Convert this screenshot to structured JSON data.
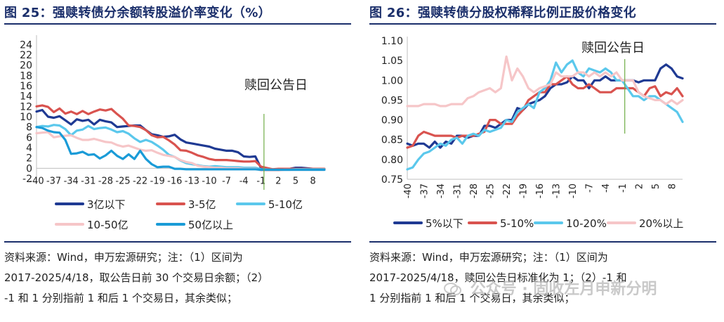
{
  "charts": [
    {
      "id": "left",
      "figure_title": "图 25：强赎转债分余额转股溢价率变化（%）",
      "annotation": "赎回公告日",
      "source_lines": [
        "资料来源：Wind，申万宏源研究；注：（1）区间为",
        "2017-2025/4/18，取公告日前 30 个交易日余额；（2）",
        "-1 和 1 分别指前 1 和后 1 个交易日，其余类似；"
      ]
    },
    {
      "id": "right",
      "figure_title": "图 26：强赎转债分股权稀释比例正股价格变化",
      "annotation": "赎回公告日",
      "source_lines": [
        "资料来源：Wind，申万宏源研究；注：（1）区间为",
        "2017-2025/4/18，赎回公告日标准化为 1；（2）-1 和",
        "1 分别指前 1 和后 1 个交易日，其余类似；"
      ]
    }
  ],
  "watermark": "公众号 · 固收左月申新分明",
  "colors": {
    "navy": "#1f3a93",
    "red": "#d9534f",
    "light_blue": "#5bc8ec",
    "pink": "#f6c6c8",
    "mid_blue": "#1a9bd7",
    "green_marker": "#70ad47",
    "rule": "#1b2f6b"
  },
  "chart_data": [
    {
      "type": "line",
      "title": "",
      "xlabel": "",
      "ylabel": "",
      "x_tick_labels": [
        "-40",
        "-37",
        "-34",
        "-31",
        "-28",
        "-25",
        "-22",
        "-19",
        "-16",
        "-13",
        "-10",
        "-7",
        "-4",
        "-1",
        "2",
        "5",
        "8"
      ],
      "x": [
        -40,
        -39,
        -38,
        -37,
        -36,
        -35,
        -34,
        -33,
        -32,
        -31,
        -30,
        -29,
        -28,
        -27,
        -26,
        -25,
        -24,
        -23,
        -22,
        -21,
        -20,
        -19,
        -18,
        -17,
        -16,
        -15,
        -14,
        -13,
        -12,
        -11,
        -10,
        -9,
        -8,
        -7,
        -6,
        -5,
        -4,
        -3,
        -2,
        -1,
        1,
        2,
        3,
        4,
        5,
        6,
        7,
        8,
        9,
        10
      ],
      "xlim": [
        -40,
        10
      ],
      "ylim": [
        -2,
        25
      ],
      "y_ticks": [
        -2,
        0,
        2,
        4,
        6,
        8,
        10,
        12,
        14,
        16,
        18,
        20,
        22,
        24
      ],
      "y_tick_labels": [
        "-2",
        "0",
        "2",
        "4",
        "6",
        "8",
        "10",
        "12",
        "14",
        "16",
        "18",
        "20",
        "22",
        "24"
      ],
      "event_x": -0.5,
      "event_label": "赎回公告日",
      "legend_position": "bottom",
      "series": [
        {
          "name": "3亿以下",
          "color": "#1f3a93",
          "values": [
            11,
            11.3,
            10,
            9.8,
            10.1,
            9.3,
            8.5,
            9.5,
            9.2,
            9.4,
            8.5,
            9.4,
            9.1,
            8.9,
            8.0,
            8.1,
            8.2,
            8.3,
            8.3,
            7.4,
            6.6,
            6.4,
            6.1,
            6.2,
            6.5,
            5.6,
            5.0,
            4.8,
            4.6,
            4.4,
            4.2,
            3.8,
            3.6,
            3.4,
            3.4,
            3.1,
            2.3,
            2.2,
            2.3,
            0,
            -0.3,
            -0.2,
            -0.2,
            -0.1,
            0.1,
            0.1,
            0.0,
            -0.1,
            -0.1,
            -0.2
          ]
        },
        {
          "name": "3-5亿",
          "color": "#d9534f",
          "values": [
            12,
            12.2,
            11.9,
            10.9,
            11.6,
            10.6,
            11.0,
            10.5,
            11.1,
            10.5,
            11.0,
            11.4,
            11.2,
            11.5,
            10.5,
            9.6,
            8.3,
            8.2,
            8.0,
            7.4,
            6.4,
            6.0,
            6.1,
            5.4,
            4.6,
            3.5,
            3.4,
            3.0,
            2.5,
            2.2,
            1.8,
            1.6,
            1.6,
            1.6,
            1.5,
            1.4,
            1.3,
            1.3,
            1.4,
            0.3,
            -0.2,
            -0.1,
            -0.1,
            -0.1,
            -0.1,
            -0.1,
            -0.1,
            -0.1,
            -0.1,
            -0.1
          ]
        },
        {
          "name": "5-10亿",
          "color": "#5bc8ec",
          "values": [
            8.0,
            8.2,
            8.1,
            8.4,
            8.3,
            7.6,
            6.4,
            7.3,
            7.5,
            8.2,
            7.6,
            7.8,
            7.9,
            7.5,
            7.0,
            7.2,
            6.7,
            5.8,
            5.1,
            5.5,
            5.1,
            4.4,
            3.6,
            2.6,
            2.2,
            1.5,
            1.0,
            0.8,
            0.6,
            0.4,
            0.3,
            0.4,
            0.3,
            0.2,
            0.2,
            0.2,
            0.1,
            0.1,
            0.1,
            -0.2,
            -0.3,
            -0.3,
            -0.3,
            -0.3,
            -0.2,
            -0.2,
            -0.2,
            -0.2,
            -0.2,
            -0.2
          ]
        },
        {
          "name": "10-50亿",
          "color": "#f6c6c8",
          "values": [
            6.8,
            6.9,
            7.0,
            6.0,
            6.2,
            6.3,
            6.4,
            5.9,
            5.5,
            5.5,
            5.7,
            5.4,
            5.1,
            5.0,
            4.5,
            4.2,
            4.4,
            4.0,
            3.6,
            3.4,
            3.5,
            3.0,
            2.6,
            2.4,
            2.2,
            1.6,
            1.2,
            1.0,
            0.5,
            0.3,
            0.2,
            0.1,
            0.1,
            0.0,
            0.0,
            0.0,
            -0.1,
            -0.1,
            -0.1,
            -0.4,
            -0.4,
            -0.4,
            -0.3,
            -0.3,
            -0.3,
            -0.3,
            -0.3,
            -0.3,
            -0.3,
            -0.3
          ]
        },
        {
          "name": "50亿以上",
          "color": "#1a9bd7",
          "values": [
            8.0,
            7.8,
            7.3,
            7.0,
            6.9,
            5.5,
            2.8,
            2.9,
            3.2,
            2.6,
            2.7,
            1.9,
            2.5,
            3.4,
            2.4,
            1.8,
            2.7,
            1.8,
            3.4,
            1.8,
            0.8,
            0.2,
            0.3,
            0.3,
            -0.1,
            -0.1,
            -0.2,
            -0.2,
            -0.2,
            -0.2,
            -0.2,
            -0.2,
            -0.2,
            -0.2,
            -0.2,
            -0.2,
            -0.2,
            -0.2,
            -0.2,
            -0.3,
            -0.3,
            -0.3,
            -0.3,
            -0.3,
            -0.3,
            -0.3,
            -0.3,
            -0.3,
            -0.3,
            -0.3
          ]
        }
      ]
    },
    {
      "type": "line",
      "title": "",
      "xlabel": "",
      "ylabel": "",
      "x_tick_labels": [
        "-40",
        "-37",
        "-34",
        "-31",
        "-28",
        "-25",
        "-22",
        "-19",
        "-16",
        "-13",
        "-10",
        "-7",
        "-4",
        "-1",
        "2",
        "5",
        "8"
      ],
      "x": [
        -40,
        -39,
        -38,
        -37,
        -36,
        -35,
        -34,
        -33,
        -32,
        -31,
        -30,
        -29,
        -28,
        -27,
        -26,
        -25,
        -24,
        -23,
        -22,
        -21,
        -20,
        -19,
        -18,
        -17,
        -16,
        -15,
        -14,
        -13,
        -12,
        -11,
        -10,
        -9,
        -8,
        -7,
        -6,
        -5,
        -4,
        -3,
        -2,
        -1,
        1,
        2,
        3,
        4,
        5,
        6,
        7,
        8,
        9,
        10
      ],
      "xlim": [
        -40,
        10
      ],
      "ylim": [
        0.75,
        1.1
      ],
      "y_ticks": [
        0.75,
        0.8,
        0.85,
        0.9,
        0.95,
        1.0,
        1.05,
        1.1
      ],
      "y_tick_labels": [
        "0.75",
        "0.80",
        "0.85",
        "0.90",
        "0.95",
        "1.00",
        "1.05",
        "1.10"
      ],
      "event_x": -0.5,
      "event_label": "赎回公告日",
      "legend_position": "bottom",
      "series": [
        {
          "name": "5%以下",
          "color": "#1f3a93",
          "values": [
            0.84,
            0.835,
            0.84,
            0.84,
            0.83,
            0.845,
            0.83,
            0.845,
            0.84,
            0.86,
            0.86,
            0.855,
            0.86,
            0.86,
            0.885,
            0.885,
            0.88,
            0.89,
            0.9,
            0.9,
            0.93,
            0.925,
            0.94,
            0.945,
            0.95,
            0.96,
            0.98,
            0.99,
            0.99,
            0.995,
            1.01,
            1.0,
            1.0,
            0.98,
            1.0,
            1.0,
            1.01,
            1.0,
            1.0,
            1.0,
            1.0,
            0.995,
            1.0,
            1.0,
            1.0,
            1.03,
            1.04,
            1.03,
            1.01,
            1.005
          ]
        },
        {
          "name": "5-10%",
          "color": "#d9534f",
          "values": [
            0.83,
            0.835,
            0.86,
            0.87,
            0.865,
            0.86,
            0.86,
            0.86,
            0.86,
            0.855,
            0.86,
            0.86,
            0.86,
            0.865,
            0.87,
            0.9,
            0.9,
            0.89,
            0.89,
            0.89,
            0.91,
            0.925,
            0.95,
            0.96,
            0.97,
            0.97,
            0.99,
            0.99,
            1.0,
            1.01,
            0.99,
            0.98,
            0.98,
            0.99,
            0.98,
            0.97,
            0.97,
            0.97,
            0.98,
            0.98,
            0.98,
            0.97,
            0.96,
            0.98,
            0.985,
            0.96,
            0.97,
            0.965,
            0.98,
            0.96
          ]
        },
        {
          "name": "10-20%",
          "color": "#5bc8ec",
          "values": [
            0.775,
            0.78,
            0.8,
            0.815,
            0.82,
            0.83,
            0.84,
            0.835,
            0.85,
            0.855,
            0.84,
            0.86,
            0.865,
            0.86,
            0.875,
            0.87,
            0.875,
            0.88,
            0.9,
            0.895,
            0.92,
            0.93,
            0.94,
            0.93,
            0.97,
            0.98,
            1.0,
            1.045,
            1.02,
            1.04,
            1.05,
            1.02,
            1.01,
            1.03,
            1.025,
            1.02,
            1.03,
            1.02,
            1.0,
            1.0,
            0.96,
            0.96,
            0.95,
            0.96,
            0.96,
            0.95,
            0.94,
            0.93,
            0.92,
            0.895
          ]
        },
        {
          "name": "20%以上",
          "color": "#f6c6c8",
          "values": [
            0.935,
            0.935,
            0.935,
            0.94,
            0.94,
            0.94,
            0.935,
            0.935,
            0.94,
            0.94,
            0.94,
            0.955,
            0.96,
            0.97,
            0.975,
            0.98,
            0.97,
            0.98,
            1.06,
            1.0,
            1.03,
            1.01,
            0.98,
            0.97,
            0.98,
            0.985,
            0.99,
            1.02,
            1.01,
            1.01,
            1.01,
            1.02,
            1.02,
            1.01,
            1.02,
            1.01,
            1.02,
            1.01,
            1.02,
            1.0,
            1.0,
            0.97,
            0.96,
            0.955,
            0.95,
            0.95,
            0.94,
            0.95,
            0.94,
            0.95
          ]
        }
      ]
    }
  ]
}
